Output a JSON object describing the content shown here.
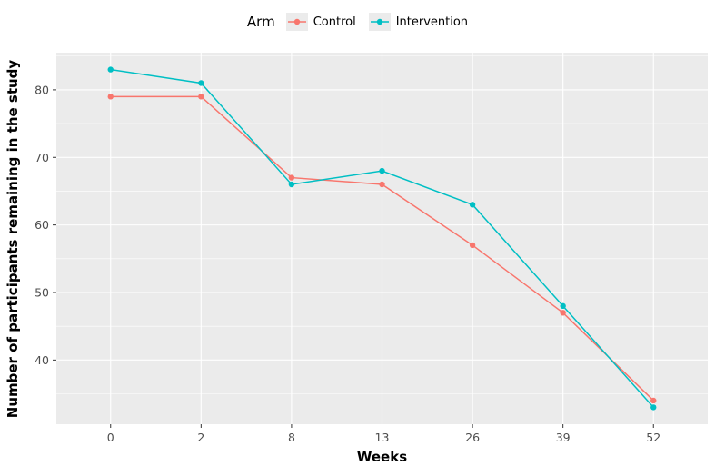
{
  "chart_data": {
    "type": "line",
    "title": "",
    "xlabel": "Weeks",
    "ylabel": "Number of participants remaining in the study",
    "legend_title": "Arm",
    "legend_position": "top",
    "categories": [
      "0",
      "2",
      "8",
      "13",
      "26",
      "39",
      "52"
    ],
    "series": [
      {
        "name": "Control",
        "color": "#F8766D",
        "values": [
          79,
          79,
          67,
          66,
          57,
          47,
          34
        ]
      },
      {
        "name": "Intervention",
        "color": "#00BFC4",
        "values": [
          83,
          81,
          66,
          68,
          63,
          48,
          33
        ]
      }
    ],
    "y_ticks": [
      40,
      50,
      60,
      70,
      80
    ],
    "y_minor_ticks": [
      35,
      45,
      55,
      65,
      75,
      85
    ],
    "ylim": [
      30.5,
      85.5
    ],
    "grid": true,
    "panel_background": "#EBEBEB",
    "grid_major_color": "#FFFFFF",
    "grid_minor_color": "#FFFFFF",
    "tick_label_color": "#4D4D4D",
    "tick_mark_color": "#333333"
  }
}
